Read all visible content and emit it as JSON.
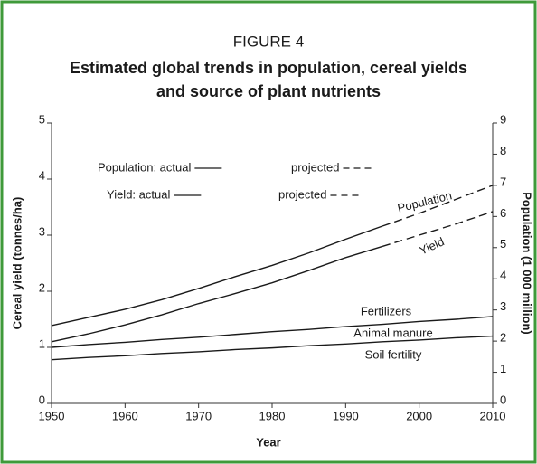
{
  "chart_data": {
    "type": "line",
    "subtitle": "FIGURE 4",
    "title": [
      "Estimated global trends in population, cereal yields",
      "and source of plant nutrients"
    ],
    "x_label": "Year",
    "y_label": "Cereal yield (tonnes/ha)",
    "y2_label": "Population (1 000 million)",
    "x": [
      1950,
      1955,
      1960,
      1965,
      1970,
      1975,
      1980,
      1985,
      1990,
      1995,
      2000,
      2005,
      2010
    ],
    "xlim": [
      1950,
      2010
    ],
    "xticks": [
      1950,
      1960,
      1970,
      1980,
      1990,
      2000,
      2010
    ],
    "ylim": [
      0,
      5
    ],
    "yticks": [
      0,
      1,
      2,
      3,
      4,
      5
    ],
    "y2lim": [
      0,
      9
    ],
    "y2ticks": [
      0,
      1,
      2,
      3,
      4,
      5,
      6,
      7,
      8,
      9
    ],
    "legend_text": [
      "Population: actual",
      "projected",
      "Yield: actual",
      "projected"
    ],
    "series": [
      {
        "name": "Population",
        "axis": "y2",
        "color": "#1a1a1a",
        "values": [
          2.5,
          2.76,
          3.02,
          3.33,
          3.69,
          4.07,
          4.43,
          4.83,
          5.27,
          5.69,
          null,
          null,
          null
        ],
        "projected": [
          null,
          null,
          null,
          null,
          null,
          null,
          null,
          null,
          null,
          5.69,
          6.1,
          6.55,
          7.0
        ]
      },
      {
        "name": "Yield",
        "axis": "y",
        "color": "#1a1a1a",
        "values": [
          1.1,
          1.24,
          1.4,
          1.58,
          1.78,
          1.96,
          2.15,
          2.37,
          2.6,
          2.8,
          null,
          null,
          null
        ],
        "projected": [
          null,
          null,
          null,
          null,
          null,
          null,
          null,
          null,
          null,
          2.8,
          3.0,
          3.2,
          3.42
        ]
      },
      {
        "axis": "y",
        "color": "#1a1a1a",
        "values": [
          1.0,
          1.05,
          1.09,
          1.14,
          1.18,
          1.23,
          1.28,
          1.32,
          1.37,
          1.41,
          1.46,
          1.5,
          1.55
        ]
      },
      {
        "axis": "y",
        "color": "#1a1a1a",
        "values": [
          0.78,
          0.82,
          0.85,
          0.89,
          0.92,
          0.96,
          0.99,
          1.03,
          1.06,
          1.1,
          1.13,
          1.17,
          1.2
        ]
      }
    ],
    "annotations": [
      "Fertilizers",
      "Animal manure",
      "Soil fertility"
    ]
  }
}
